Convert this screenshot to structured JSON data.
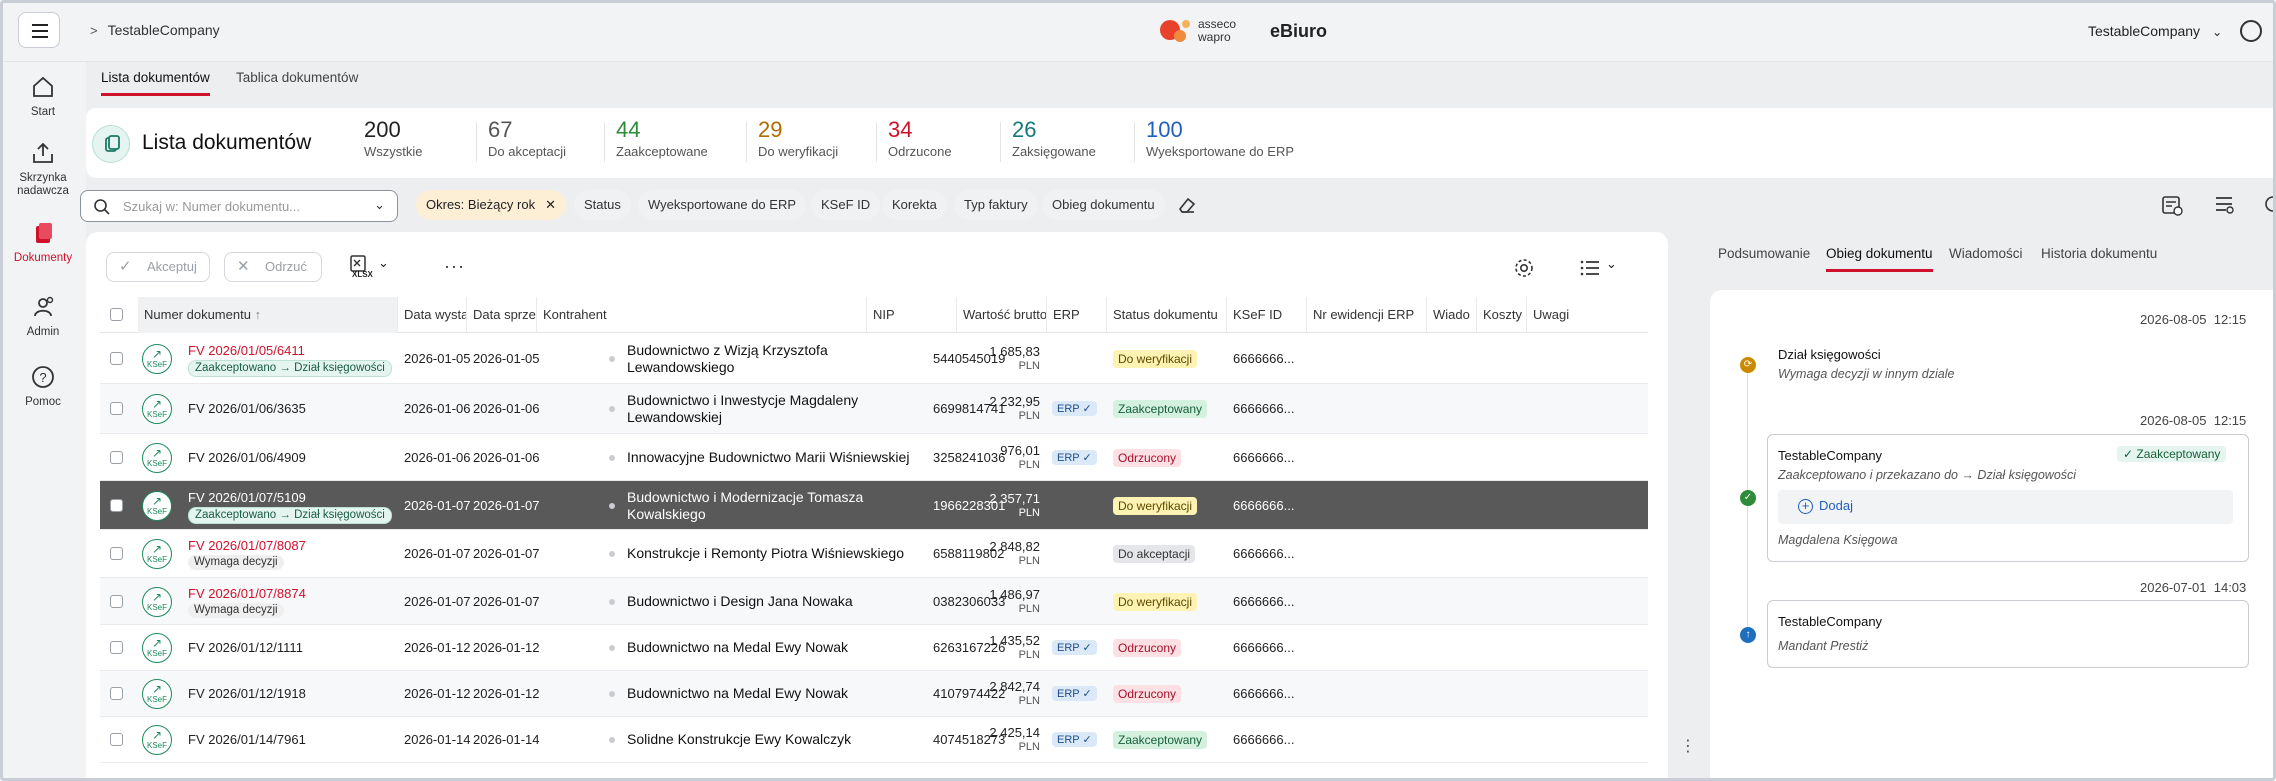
{
  "topbar": {
    "breadcrumb": "TestableCompany",
    "brand_line1": "asseco",
    "brand_line2": "wapro",
    "app_name": "eBiuro",
    "company": "TestableCompany"
  },
  "sidebar": {
    "items": [
      {
        "label": "Start",
        "icon": "home-icon"
      },
      {
        "label": "Skrzynka nadawcza",
        "line1": "Skrzynka",
        "line2": "nadawcza",
        "icon": "outbox-icon"
      },
      {
        "label": "Dokumenty",
        "icon": "documents-icon",
        "active": true
      },
      {
        "label": "Admin",
        "icon": "admin-icon"
      },
      {
        "label": "Pomoc",
        "icon": "help-icon"
      }
    ]
  },
  "subtabs": [
    "Lista dokumentów",
    "Tablica dokumentów"
  ],
  "header": {
    "title": "Lista dokumentów",
    "stats": [
      {
        "value": "200",
        "label": "Wszystkie",
        "color": "#222222"
      },
      {
        "value": "67",
        "label": "Do akceptacji",
        "color": "#555555"
      },
      {
        "value": "44",
        "label": "Zaakceptowane",
        "color": "#2e8b3a"
      },
      {
        "value": "29",
        "label": "Do weryfikacji",
        "color": "#b36b00"
      },
      {
        "value": "34",
        "label": "Odrzucone",
        "color": "#d0112b"
      },
      {
        "value": "26",
        "label": "Zaksięgowane",
        "color": "#127a7a"
      },
      {
        "value": "100",
        "label": "Wyeksportowane do ERP",
        "color": "#1f5fbf"
      }
    ]
  },
  "filters": {
    "search_placeholder": "Szukaj w: Numer dokumentu...",
    "period_chip": "Okres: Bieżący rok",
    "chips": [
      "Status",
      "Wyeksportowane do ERP",
      "KSeF ID",
      "Korekta",
      "Typ faktury",
      "Obieg dokumentu"
    ]
  },
  "toolbar": {
    "accept": "Akceptuj",
    "reject": "Odrzuć",
    "export_label": "XLSX",
    "more": "···"
  },
  "table": {
    "columns": [
      "Numer dokumentu",
      "Data wystawie",
      "Data sprzedaż",
      "Kontrahent",
      "NIP",
      "Wartość brutto",
      "ERP",
      "Status dokumentu",
      "KSeF ID",
      "Nr ewidencji ERP",
      "Wiado",
      "Koszty",
      "Uwagi"
    ],
    "currency": "PLN",
    "erp_badge": "ERP ✓",
    "rows": [
      {
        "number": "FV 2026/01/05/6411",
        "num_style": "red",
        "sub": "Zaakceptowano → Dział księgowości",
        "sub_style": "green",
        "issue": "2026-01-05",
        "sale": "2026-01-05",
        "contractor": "Budownictwo z Wizją Krzysztofa Lewandowskiego",
        "nip": "5440545019",
        "amount": "1 685,83",
        "erp": false,
        "status": "Do weryfikacji",
        "status_style": "weryf",
        "ksef": "6666666..."
      },
      {
        "number": "FV 2026/01/06/3635",
        "num_style": "normal",
        "sub": "",
        "sub_style": "",
        "issue": "2026-01-06",
        "sale": "2026-01-06",
        "contractor": "Budownictwo i Inwestycje Magdaleny Lewandowskiej",
        "nip": "6699814741",
        "amount": "2 232,95",
        "erp": true,
        "status": "Zaakceptowany",
        "status_style": "zaak",
        "ksef": "6666666..."
      },
      {
        "number": "FV 2026/01/06/4909",
        "num_style": "normal",
        "sub": "",
        "sub_style": "",
        "issue": "2026-01-06",
        "sale": "2026-01-06",
        "contractor": "Innowacyjne Budownictwo Marii Wiśniewskiej",
        "nip": "3258241036",
        "amount": "976,01",
        "erp": true,
        "status": "Odrzucony",
        "status_style": "odrz",
        "ksef": "6666666..."
      },
      {
        "number": "FV 2026/01/07/5109",
        "num_style": "white",
        "sub": "Zaakceptowano → Dział księgowości",
        "sub_style": "green",
        "issue": "2026-01-07",
        "sale": "2026-01-07",
        "contractor": "Budownictwo i Modernizacje Tomasza Kowalskiego",
        "nip": "1966228301",
        "amount": "2 357,71",
        "erp": false,
        "status": "Do weryfikacji",
        "status_style": "weryf",
        "ksef": "6666666...",
        "selected": true
      },
      {
        "number": "FV 2026/01/07/8087",
        "num_style": "red",
        "sub": "Wymaga decyzji",
        "sub_style": "grey",
        "issue": "2026-01-07",
        "sale": "2026-01-07",
        "contractor": "Konstrukcje i Remonty Piotra Wiśniewskiego",
        "nip": "6588119802",
        "amount": "2 848,82",
        "erp": false,
        "status": "Do akceptacji",
        "status_style": "akc",
        "ksef": "6666666..."
      },
      {
        "number": "FV 2026/01/07/8874",
        "num_style": "red",
        "sub": "Wymaga decyzji",
        "sub_style": "grey",
        "issue": "2026-01-07",
        "sale": "2026-01-07",
        "contractor": "Budownictwo i Design Jana Nowaka",
        "nip": "0382306033",
        "amount": "1 486,97",
        "erp": false,
        "status": "Do weryfikacji",
        "status_style": "weryf",
        "ksef": "6666666..."
      },
      {
        "number": "FV 2026/01/12/1111",
        "num_style": "normal",
        "sub": "",
        "sub_style": "",
        "issue": "2026-01-12",
        "sale": "2026-01-12",
        "contractor": "Budownictwo na Medal Ewy Nowak",
        "nip": "6263167226",
        "amount": "1 435,52",
        "erp": true,
        "status": "Odrzucony",
        "status_style": "odrz",
        "ksef": "6666666..."
      },
      {
        "number": "FV 2026/01/12/1918",
        "num_style": "normal",
        "sub": "",
        "sub_style": "",
        "issue": "2026-01-12",
        "sale": "2026-01-12",
        "contractor": "Budownictwo na Medal Ewy Nowak",
        "nip": "4107974422",
        "amount": "2 842,74",
        "erp": true,
        "status": "Odrzucony",
        "status_style": "odrz",
        "ksef": "6666666..."
      },
      {
        "number": "FV 2026/01/14/7961",
        "num_style": "normal",
        "sub": "",
        "sub_style": "",
        "issue": "2026-01-14",
        "sale": "2026-01-14",
        "contractor": "Solidne Konstrukcje Ewy Kowalczyk",
        "nip": "4074518273",
        "amount": "2 425,14",
        "erp": true,
        "status": "Zaakceptowany",
        "status_style": "zaak",
        "ksef": "6666666..."
      }
    ]
  },
  "right_panel": {
    "tabs": [
      "Podsumowanie",
      "Obieg dokumentu",
      "Wiadomości",
      "Historia dokumentu"
    ],
    "events": [
      {
        "date": "2026-08-05",
        "time": "12:15",
        "title": "Dział księgowości",
        "subtitle": "Wymaga decyzji w innym dziale",
        "dot_color": "#c98a00"
      },
      {
        "date": "2026-08-05",
        "time": "12:15",
        "title": "TestableCompany",
        "status": "✓ Zaakceptowany",
        "subtitle": "Zaakceptowano i przekazano do → Dział księgowości",
        "add": "Dodaj",
        "user": "Magdalena Księgowa",
        "dot_color": "#2e8b3a"
      },
      {
        "date": "2026-07-01",
        "time": "14:03",
        "title": "TestableCompany",
        "subtitle": "Mandant Prestiż",
        "dot_color": "#1f6fbf"
      }
    ]
  }
}
